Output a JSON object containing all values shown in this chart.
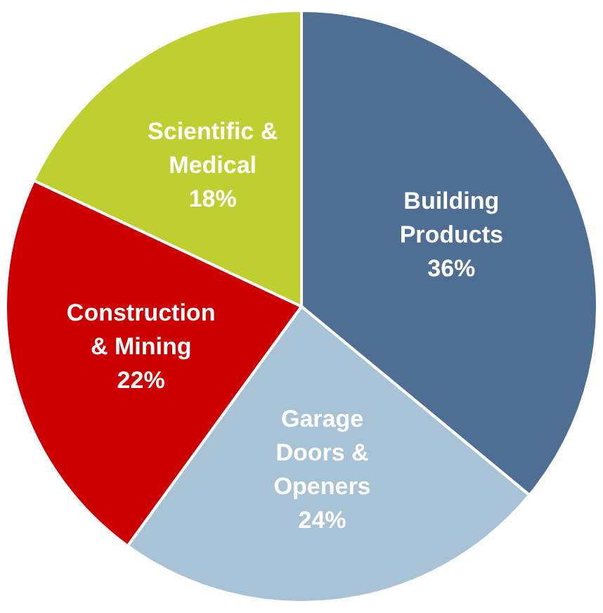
{
  "chart_data": {
    "type": "pie",
    "categories": [
      "Building Products",
      "Garage Doors & Openers",
      "Construction & Mining",
      "Scientific & Medical"
    ],
    "values": [
      36,
      24,
      22,
      18
    ],
    "colors": [
      "#4e6f93",
      "#a8c3d5",
      "#cc0000",
      "#bfcf30"
    ],
    "value_labels": [
      "36%",
      "24%",
      "22%",
      "18%"
    ],
    "legend": false
  }
}
